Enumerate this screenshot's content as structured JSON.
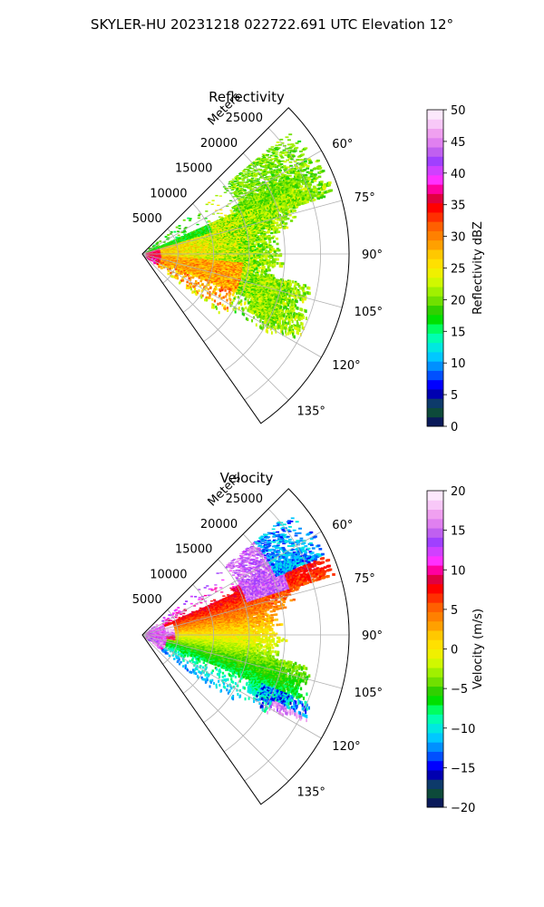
{
  "figure": {
    "suptitle": "SKYLER-HU  20231218  022722.691 UTC Elevation 12°"
  },
  "chart_data": [
    {
      "type": "heatmap",
      "projection": "polar-sector",
      "title": "Reflectivity",
      "radial_label": "Meters",
      "radial_ticks": [
        5000,
        10000,
        15000,
        20000,
        25000
      ],
      "radial_tick_labels": [
        "5000",
        "10000",
        "15000",
        "20000",
        "25000"
      ],
      "rmax": 29000,
      "theta_min_deg": 45,
      "theta_max_deg": 145,
      "theta_ticks_deg": [
        60,
        75,
        90,
        105,
        120,
        135
      ],
      "theta_tick_labels": [
        "60°",
        "75°",
        "90°",
        "105°",
        "120°",
        "135°"
      ],
      "colorbar": {
        "label": "Reflectivity dBZ",
        "min": 0,
        "max": 50,
        "ticks": [
          0,
          5,
          10,
          15,
          20,
          25,
          30,
          35,
          40,
          45,
          50
        ],
        "tick_labels": [
          "0",
          "5",
          "10",
          "15",
          "20",
          "25",
          "30",
          "35",
          "40",
          "45",
          "50"
        ],
        "colors": [
          "#0a1a5a",
          "#0d4a3a",
          "#0d3a6a",
          "#0000b0",
          "#0000ff",
          "#0050ff",
          "#0090ff",
          "#00c8ff",
          "#00e8e0",
          "#00ffb0",
          "#00ff60",
          "#00e000",
          "#30d000",
          "#70e000",
          "#a0f000",
          "#d0f800",
          "#f0f000",
          "#ffe000",
          "#ffc800",
          "#ffa000",
          "#ff8000",
          "#ff6000",
          "#ff3000",
          "#ff0000",
          "#e00040",
          "#ff00a0",
          "#ff30ff",
          "#d040ff",
          "#a040ff",
          "#c060f0",
          "#e080f0",
          "#f0a0f0",
          "#f8c8f8",
          "#fce8fc"
        ]
      }
    },
    {
      "type": "heatmap",
      "projection": "polar-sector",
      "title": "Velocity",
      "radial_label": "Meters",
      "radial_ticks": [
        5000,
        10000,
        15000,
        20000,
        25000
      ],
      "radial_tick_labels": [
        "5000",
        "10000",
        "15000",
        "20000",
        "25000"
      ],
      "rmax": 29000,
      "theta_min_deg": 45,
      "theta_max_deg": 145,
      "theta_ticks_deg": [
        60,
        75,
        90,
        105,
        120,
        135
      ],
      "theta_tick_labels": [
        "60°",
        "75°",
        "90°",
        "105°",
        "120°",
        "135°"
      ],
      "colorbar": {
        "label": "Velocity (m/s)",
        "min": -20,
        "max": 20,
        "ticks": [
          -20,
          -15,
          -10,
          -5,
          0,
          5,
          10,
          15,
          20
        ],
        "tick_labels": [
          "−20",
          "−15",
          "−10",
          "−5",
          "0",
          "5",
          "10",
          "15",
          "20"
        ],
        "colors": [
          "#0a1a5a",
          "#0d4a3a",
          "#0d3a6a",
          "#0000b0",
          "#0000ff",
          "#0050ff",
          "#0090ff",
          "#00c8ff",
          "#00e8e0",
          "#00ffb0",
          "#00ff60",
          "#00e000",
          "#30d000",
          "#70e000",
          "#a0f000",
          "#d0f800",
          "#f0f000",
          "#ffe000",
          "#ffc800",
          "#ffa000",
          "#ff8000",
          "#ff6000",
          "#ff3000",
          "#ff0000",
          "#e00040",
          "#ff00a0",
          "#ff30ff",
          "#d040ff",
          "#a040ff",
          "#c060f0",
          "#e080f0",
          "#f0a0f0",
          "#f8c8f8",
          "#fce8fc"
        ]
      }
    }
  ]
}
